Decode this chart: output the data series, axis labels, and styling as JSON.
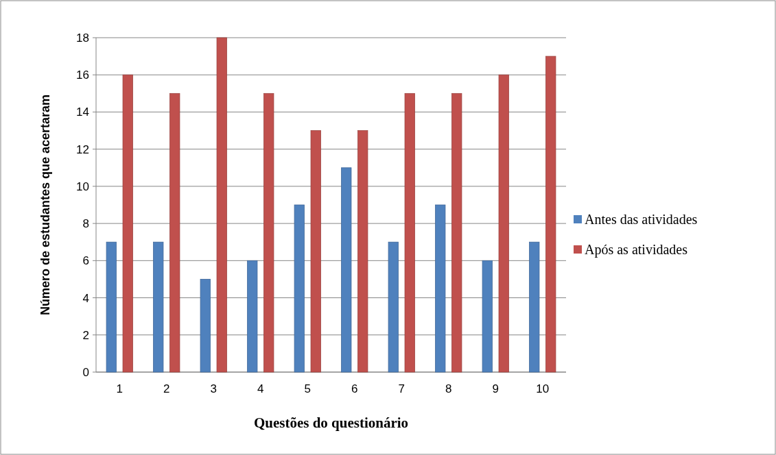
{
  "chart_data": {
    "type": "bar",
    "xlabel": "Questões do questionário",
    "ylabel": "Número de estudantes que acertaram",
    "categories": [
      "1",
      "2",
      "3",
      "4",
      "5",
      "6",
      "7",
      "8",
      "9",
      "10"
    ],
    "series": [
      {
        "name": "Antes das atividades",
        "color": "#4f81bd",
        "values": [
          7,
          7,
          5,
          6,
          9,
          11,
          7,
          9,
          6,
          7
        ]
      },
      {
        "name": "Após as atividades",
        "color": "#c0504d",
        "values": [
          16,
          15,
          18,
          15,
          13,
          13,
          15,
          15,
          16,
          17
        ]
      }
    ],
    "ylim": [
      0,
      18
    ],
    "yticks": [
      0,
      2,
      4,
      6,
      8,
      10,
      12,
      14,
      16,
      18
    ],
    "grid": "y",
    "legend": "right"
  }
}
